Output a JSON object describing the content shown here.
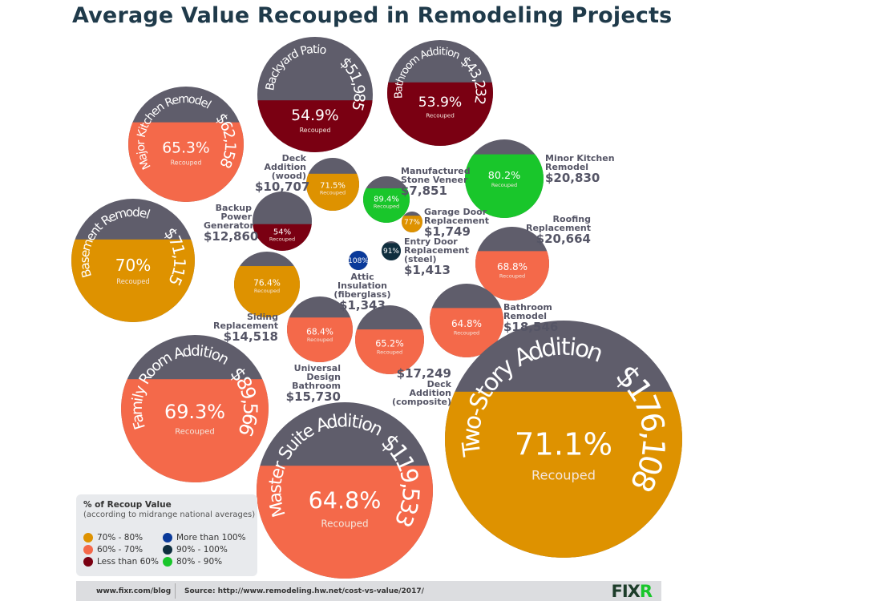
{
  "title": "Average Value Recouped in Remodeling Projects",
  "recouped_label": "Recouped",
  "colors": {
    "cost_portion": "#5f5d6b",
    "70-80": "#de9200",
    "60-70": "#f4694a",
    "lt60": "#7a0012",
    "gt100": "#0a3a9a",
    "90-100": "#0f2e3e",
    "80-90": "#19c62b"
  },
  "chart_data": {
    "type": "bubble",
    "title": "Average Value Recouped in Remodeling Projects",
    "size_encodes": "cost",
    "fill_encodes": "percent recouped",
    "items": [
      {
        "name": "Major Kitchen Remodel",
        "cost": "$62,158",
        "recouped": "65.3%",
        "pct": 65.3,
        "band": "60-70"
      },
      {
        "name": "Backyard Patio",
        "cost": "$51,985",
        "recouped": "54.9%",
        "pct": 54.9,
        "band": "lt60"
      },
      {
        "name": "Bathroom Addition",
        "cost": "$43,232",
        "recouped": "53.9%",
        "pct": 53.9,
        "band": "lt60"
      },
      {
        "name": "Minor Kitchen Remodel",
        "cost": "$20,830",
        "recouped": "80.2%",
        "pct": 80.2,
        "band": "80-90"
      },
      {
        "name": "Deck Addition (wood)",
        "cost": "$10,707",
        "recouped": "71.5%",
        "pct": 71.5,
        "band": "70-80"
      },
      {
        "name": "Manufactured Stone Veneer",
        "cost": "$7,851",
        "recouped": "89.4%",
        "pct": 89.4,
        "band": "80-90"
      },
      {
        "name": "Backup Power Generator",
        "cost": "$12,860",
        "recouped": "54%",
        "pct": 54,
        "band": "lt60"
      },
      {
        "name": "Garage Door Replacement",
        "cost": "$1,749",
        "recouped": "77%",
        "pct": 77,
        "band": "70-80"
      },
      {
        "name": "Basement Remodel",
        "cost": "$71,115",
        "recouped": "70%",
        "pct": 70,
        "band": "70-80"
      },
      {
        "name": "Entry Door Replacement (steel)",
        "cost": "$1,413",
        "recouped": "91%",
        "pct": 91,
        "band": "90-100"
      },
      {
        "name": "Attic Insulation (fiberglass)",
        "cost": "$1,343",
        "recouped": "108%",
        "pct": 108,
        "band": "gt100"
      },
      {
        "name": "Roofing Replacement",
        "cost": "$20,664",
        "recouped": "68.8%",
        "pct": 68.8,
        "band": "60-70"
      },
      {
        "name": "Siding Replacement",
        "cost": "$14,518",
        "recouped": "76.4%",
        "pct": 76.4,
        "band": "70-80"
      },
      {
        "name": "Universal Design Bathroom",
        "cost": "$15,730",
        "recouped": "68.4%",
        "pct": 68.4,
        "band": "60-70"
      },
      {
        "name": "Deck Addition (composite)",
        "cost": "$17,249",
        "recouped": "65.2%",
        "pct": 65.2,
        "band": "60-70"
      },
      {
        "name": "Bathroom Remodel",
        "cost": "$18,546",
        "recouped": "64.8%",
        "pct": 64.8,
        "band": "60-70"
      },
      {
        "name": "Family Room Addition",
        "cost": "$89,566",
        "recouped": "69.3%",
        "pct": 69.3,
        "band": "60-70"
      },
      {
        "name": "Master Suite Addition",
        "cost": "$119,533",
        "recouped": "64.8%",
        "pct": 64.8,
        "band": "60-70"
      },
      {
        "name": "Two-Story Addition",
        "cost": "$176,108",
        "recouped": "71.1%",
        "pct": 71.1,
        "band": "70-80"
      }
    ]
  },
  "legend": {
    "title": "% of Recoup Value",
    "subtitle": "(according to midrange national averages)",
    "items": [
      {
        "label": "70% - 80%",
        "band": "70-80"
      },
      {
        "label": "60% - 70%",
        "band": "60-70"
      },
      {
        "label": "Less than 60%",
        "band": "lt60"
      },
      {
        "label": "More than 100%",
        "band": "gt100"
      },
      {
        "label": "90% - 100%",
        "band": "90-100"
      },
      {
        "label": "80% - 90%",
        "band": "80-90"
      }
    ]
  },
  "footer": {
    "blog": "www.fixr.com/blog",
    "source": "Source: http://www.remodeling.hw.net/cost-vs-value/2017/",
    "logo": "FIXR"
  }
}
